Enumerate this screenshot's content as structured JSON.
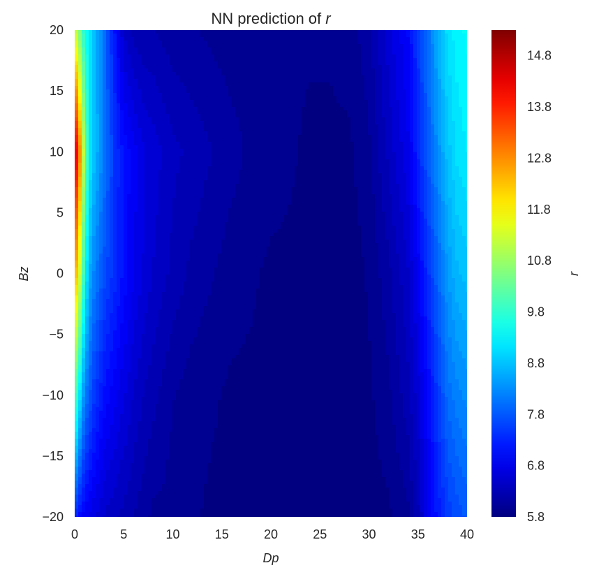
{
  "chart_data": {
    "type": "heatmap",
    "title_prefix": "NN prediction of ",
    "title_symbol": "r",
    "xlabel": "Dp",
    "ylabel": "Bz",
    "xlim": [
      0,
      40
    ],
    "ylim": [
      -20,
      20
    ],
    "x_ticks": [
      0,
      5,
      10,
      15,
      20,
      25,
      30,
      35,
      40
    ],
    "y_ticks": [
      -20,
      -15,
      -10,
      -5,
      0,
      5,
      10,
      15,
      20
    ],
    "y_tick_labels": [
      "−20",
      "−15",
      "−10",
      "−5",
      "0",
      "5",
      "10",
      "15",
      "20"
    ],
    "grid": false,
    "colormap": "jet",
    "colorbar": {
      "label": "r",
      "min": 5.8,
      "max": 15.3,
      "ticks": [
        5.8,
        6.8,
        7.8,
        8.8,
        9.8,
        10.8,
        11.8,
        12.8,
        13.8,
        14.8
      ],
      "tick_labels": [
        "5.8",
        "6.8",
        "7.8",
        "8.8",
        "9.8",
        "10.8",
        "11.8",
        "12.8",
        "13.8",
        "14.8"
      ]
    },
    "grid_x": [
      0,
      0.5,
      1,
      1.5,
      2,
      3,
      4,
      5,
      6,
      7,
      8,
      9,
      10,
      12,
      14,
      16,
      18,
      20,
      22,
      24,
      26,
      28,
      30,
      32,
      34,
      35,
      36,
      37,
      38,
      39,
      40
    ],
    "grid_y": [
      -20,
      -10,
      0,
      10,
      20
    ],
    "values": [
      [
        7.4,
        7.1,
        6.9,
        6.8,
        6.7,
        6.5,
        6.4,
        6.3,
        6.2,
        6.1,
        6.0,
        6.0,
        5.95,
        5.9,
        5.85,
        5.85,
        5.85,
        5.85,
        5.8,
        5.8,
        5.8,
        5.8,
        5.8,
        5.85,
        6.0,
        6.3,
        6.8,
        7.2,
        7.5,
        7.7,
        7.8
      ],
      [
        10.4,
        9.2,
        8.2,
        7.8,
        7.5,
        7.1,
        6.9,
        6.7,
        6.5,
        6.35,
        6.25,
        6.15,
        6.05,
        5.95,
        5.9,
        5.85,
        5.85,
        5.85,
        5.8,
        5.8,
        5.8,
        5.8,
        5.85,
        6.0,
        6.3,
        6.6,
        7.0,
        7.5,
        8.0,
        8.2,
        8.3
      ],
      [
        12.8,
        11.4,
        9.6,
        8.6,
        8.2,
        7.7,
        7.4,
        7.1,
        6.85,
        6.65,
        6.5,
        6.4,
        6.3,
        6.15,
        6.05,
        5.95,
        5.9,
        5.85,
        5.85,
        5.8,
        5.8,
        5.8,
        5.9,
        6.15,
        6.5,
        6.9,
        7.4,
        7.9,
        8.4,
        8.7,
        8.8
      ],
      [
        14.9,
        13.0,
        10.6,
        9.3,
        8.8,
        8.1,
        7.5,
        7.1,
        6.9,
        6.7,
        6.6,
        6.5,
        6.4,
        6.3,
        6.2,
        6.1,
        6.0,
        5.95,
        5.9,
        5.85,
        5.85,
        5.85,
        6.0,
        6.4,
        6.8,
        7.3,
        7.8,
        8.3,
        8.8,
        9.1,
        9.2
      ],
      [
        11.5,
        10.5,
        9.6,
        9.2,
        8.8,
        8.0,
        7.2,
        6.5,
        6.3,
        6.2,
        6.2,
        6.15,
        6.1,
        6.05,
        6.0,
        5.95,
        5.95,
        5.9,
        5.9,
        5.9,
        5.9,
        5.95,
        6.15,
        6.6,
        7.0,
        7.5,
        8.0,
        8.6,
        9.1,
        9.3,
        9.4
      ]
    ]
  }
}
